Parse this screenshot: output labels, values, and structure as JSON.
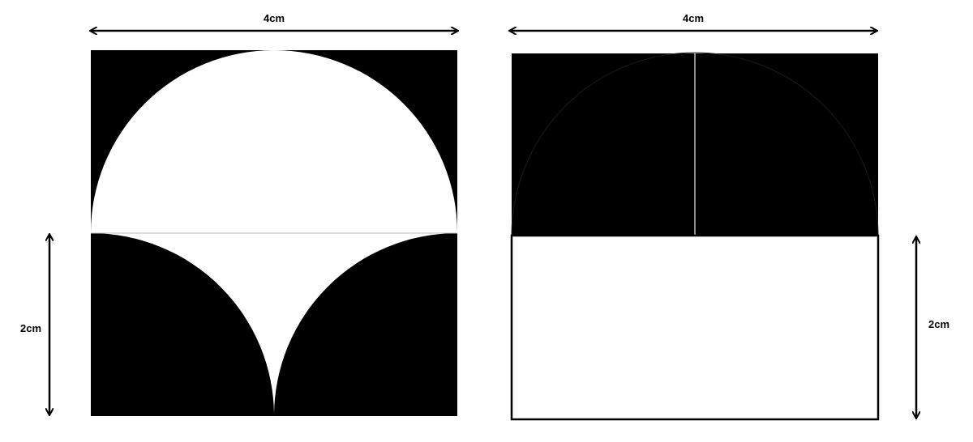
{
  "figures": [
    {
      "id": "left",
      "width_label": "4cm",
      "height_label": "2cm"
    },
    {
      "id": "right",
      "width_label": "4cm",
      "height_label": "2cm"
    }
  ],
  "colors": {
    "fill": "#000000",
    "background": "#ffffff",
    "divider": "#bbbbbb"
  }
}
